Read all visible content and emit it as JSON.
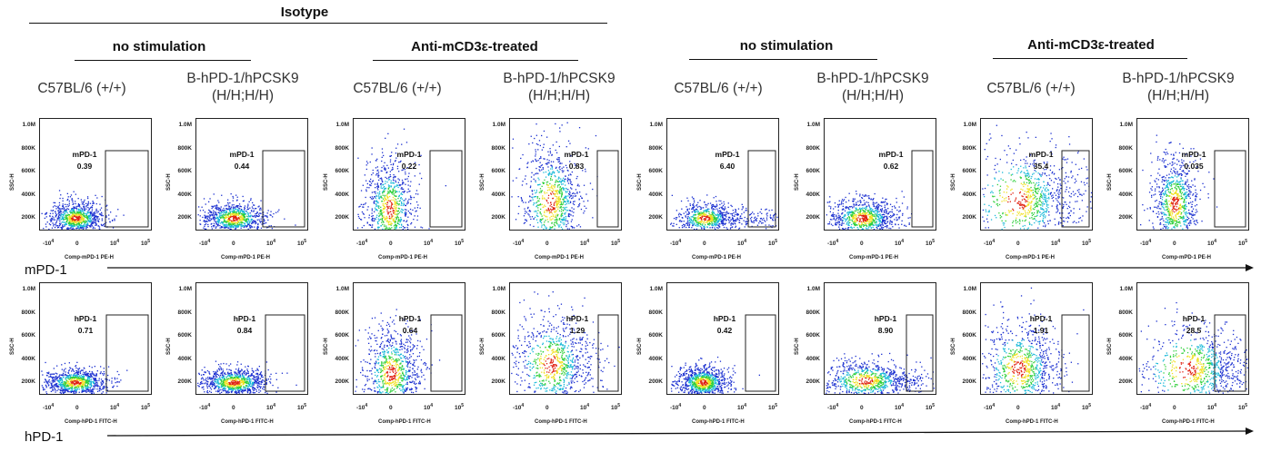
{
  "header": {
    "top_title": "Isotype",
    "groups": [
      {
        "label": "no stimulation"
      },
      {
        "label": "Anti-mCD3ε-treated"
      },
      {
        "label": "no stimulation"
      },
      {
        "label": "Anti-mCD3ε-treated"
      }
    ]
  },
  "strains": [
    {
      "line1": "C57BL/6 (+/+)",
      "line2": ""
    },
    {
      "line1": "B-hPD-1/hPCSK9",
      "line2": "(H/H;H/H)"
    },
    {
      "line1": "C57BL/6 (+/+)",
      "line2": ""
    },
    {
      "line1": "B-hPD-1/hPCSK9",
      "line2": "(H/H;H/H)"
    },
    {
      "line1": "C57BL/6 (+/+)",
      "line2": ""
    },
    {
      "line1": "B-hPD-1/hPCSK9",
      "line2": "(H/H;H/H)"
    },
    {
      "line1": "C57BL/6 (+/+)",
      "line2": ""
    },
    {
      "line1": "B-hPD-1/hPCSK9",
      "line2": "(H/H;H/H)"
    }
  ],
  "axes": {
    "y_label": "SSC-H",
    "y_ticks": [
      "1.0M",
      "800K",
      "600K",
      "400K",
      "200K"
    ],
    "x_ticks": [
      "-10",
      "0",
      "10",
      "10"
    ],
    "x_tick_exps": [
      "4",
      "",
      "4",
      "5"
    ]
  },
  "rows": [
    {
      "marker_label": "mPD-1",
      "x_label": "Comp-mPD-1 PE-H",
      "gate_name": "mPD-1",
      "values": [
        "0.39",
        "0.44",
        "0.22",
        "0.83",
        "6.40",
        "0.62",
        "35.4",
        "0.035"
      ]
    },
    {
      "marker_label": "hPD-1",
      "x_label": "Comp-hPD-1 FITC-H",
      "gate_name": "hPD-1",
      "values": [
        "0.71",
        "0.84",
        "0.64",
        "1.29",
        "0.42",
        "8.90",
        "1.91",
        "28.5"
      ]
    }
  ],
  "colors": {
    "density_low": "#1a2fd0",
    "density_mid": "#18b8d8",
    "density_mid2": "#2fcf3a",
    "density_high": "#f0e020",
    "density_peak": "#e02010"
  }
}
